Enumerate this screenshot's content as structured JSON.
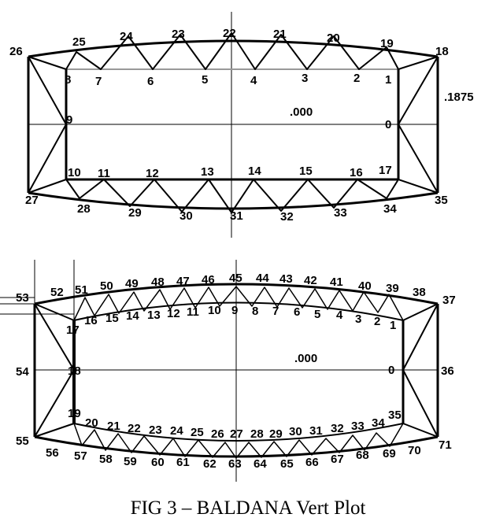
{
  "caption": "FIG 3 – BALDANA Vert Plot",
  "colors": {
    "line": "#000000",
    "chord": "#999999",
    "background": "#ffffff"
  },
  "plot_top": {
    "value_center": ".000",
    "value_right": ".1875",
    "node_labels": [
      "0",
      "1",
      "2",
      "3",
      "4",
      "5",
      "6",
      "7",
      "8",
      "9",
      "10",
      "11",
      "12",
      "13",
      "14",
      "15",
      "16",
      "17",
      "18",
      "19",
      "20",
      "21",
      "22",
      "23",
      "24",
      "25",
      "26",
      "27",
      "28",
      "29",
      "30",
      "31",
      "32",
      "33",
      "34",
      "35"
    ]
  },
  "plot_bottom": {
    "value_center": ".000",
    "node_labels": [
      "0",
      "1",
      "2",
      "3",
      "4",
      "5",
      "6",
      "7",
      "8",
      "9",
      "10",
      "11",
      "12",
      "13",
      "14",
      "15",
      "16",
      "17",
      "18",
      "19",
      "20",
      "21",
      "22",
      "23",
      "24",
      "25",
      "26",
      "27",
      "28",
      "29",
      "30",
      "31",
      "32",
      "33",
      "34",
      "35",
      "36",
      "37",
      "38",
      "39",
      "40",
      "41",
      "42",
      "43",
      "44",
      "45",
      "46",
      "47",
      "48",
      "49",
      "50",
      "51",
      "52",
      "53",
      "54",
      "55",
      "56",
      "57",
      "58",
      "59",
      "60",
      "61",
      "62",
      "63",
      "64",
      "65",
      "66",
      "67",
      "68",
      "69",
      "70",
      "71"
    ]
  }
}
